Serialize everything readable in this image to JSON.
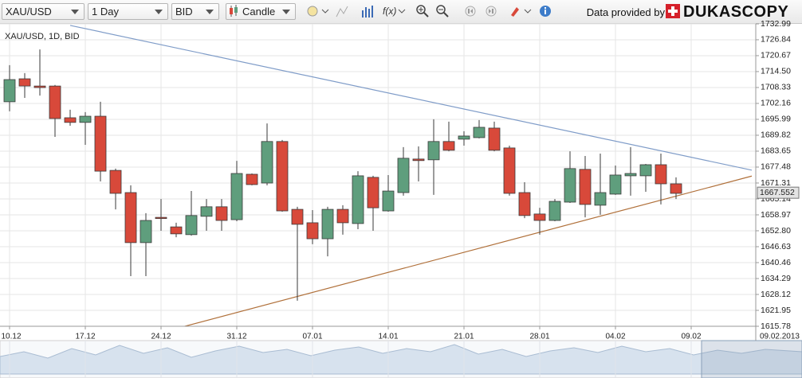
{
  "toolbar": {
    "symbol": "XAU/USD",
    "period": "1 Day",
    "side": "BID",
    "chart_type": "Candle",
    "provider_text": "Data provided by",
    "provider": "DUKASCOPY"
  },
  "chart_data": {
    "type": "candlestick",
    "label": "XAU/USD, 1D, BID",
    "categories": [
      "10.12",
      null,
      null,
      null,
      null,
      "17.12",
      null,
      null,
      null,
      null,
      "24.12",
      null,
      null,
      null,
      null,
      "31.12",
      null,
      null,
      null,
      null,
      "07.01",
      null,
      null,
      null,
      null,
      "14.01",
      null,
      null,
      null,
      null,
      "21.01",
      null,
      null,
      null,
      null,
      "28.01",
      null,
      null,
      null,
      null,
      "04.02",
      null,
      null,
      null,
      null,
      "09.02"
    ],
    "open": [
      1702.8,
      1711.7,
      1708.9,
      1708.9,
      1696.6,
      1694.8,
      1697.2,
      1676.2,
      1667.6,
      1648.2,
      1658.0,
      1654.3,
      1651.3,
      1658.4,
      1662.1,
      1657.1,
      1674.7,
      1671.3,
      1687.4,
      1661.1,
      1655.9,
      1649.7,
      1661.1,
      1655.6,
      1673.5,
      1660.5,
      1667.6,
      1680.6,
      1680.3,
      1687.4,
      1688.3,
      1688.9,
      1692.6,
      1684.9,
      1667.6,
      1659.3,
      1656.8,
      1663.9,
      1676.6,
      1662.7,
      1667.0,
      1674.1,
      1674.1,
      1678.4,
      1671.0,
      null
    ],
    "high": [
      1717.0,
      1713.9,
      1723.1,
      1709.3,
      1699.7,
      1698.8,
      1702.8,
      1676.9,
      1670.4,
      1659.6,
      1665.1,
      1655.9,
      1668.2,
      1665.1,
      1665.1,
      1679.9,
      1675.0,
      1694.4,
      1688.0,
      1662.1,
      1660.8,
      1662.1,
      1662.7,
      1675.9,
      1674.1,
      1674.4,
      1685.2,
      1685.5,
      1696.0,
      1695.1,
      1691.4,
      1695.7,
      1695.1,
      1685.8,
      1671.6,
      1661.7,
      1665.1,
      1683.6,
      1681.8,
      1682.7,
      1678.1,
      1685.2,
      1678.7,
      1682.7,
      1673.5,
      null
    ],
    "low": [
      1699.1,
      1704.3,
      1705.2,
      1689.2,
      1693.5,
      1686.1,
      1671.9,
      1661.1,
      1635.2,
      1635.2,
      1652.8,
      1650.3,
      1650.9,
      1652.8,
      1652.8,
      1656.5,
      1670.4,
      1670.4,
      1660.2,
      1625.7,
      1647.6,
      1642.9,
      1651.3,
      1653.4,
      1652.8,
      1660.2,
      1666.4,
      1671.9,
      1666.7,
      1683.6,
      1685.8,
      1688.6,
      1683.6,
      1666.4,
      1657.7,
      1651.3,
      1656.5,
      1663.6,
      1658.0,
      1659.0,
      1666.7,
      1666.4,
      1667.9,
      1663.0,
      1665.1,
      null
    ],
    "close": [
      1711.4,
      1708.9,
      1708.3,
      1696.3,
      1694.8,
      1697.2,
      1675.9,
      1667.3,
      1648.2,
      1656.8,
      1657.7,
      1651.6,
      1658.7,
      1662.1,
      1656.8,
      1675.0,
      1670.7,
      1687.4,
      1660.5,
      1655.3,
      1649.7,
      1661.1,
      1655.9,
      1674.1,
      1661.7,
      1668.2,
      1680.9,
      1680.0,
      1687.4,
      1684.0,
      1689.5,
      1692.9,
      1684.0,
      1667.3,
      1658.7,
      1656.8,
      1664.2,
      1676.9,
      1663.0,
      1667.6,
      1674.4,
      1675.0,
      1678.4,
      1671.0,
      1667.3,
      null
    ],
    "up_color": "#5f9e7d",
    "down_color": "#d8493a",
    "ylim": [
      1615.78,
      1732.99
    ],
    "yticks": [
      1615.78,
      1621.95,
      1628.12,
      1634.29,
      1640.46,
      1646.63,
      {
        "value": 1652.8,
        "label": "1652.80"
      },
      1658.97,
      1665.14,
      1671.31,
      1677.48,
      1683.65,
      1689.82,
      1695.99,
      1702.16,
      1708.33,
      {
        "value": 1714.5,
        "label": "1714.50"
      },
      1720.67,
      1726.84,
      1732.99
    ],
    "grid": true,
    "last_price": 1667.552,
    "trendlines": [
      {
        "color": "#7f9cc8",
        "points": [
          [
            4,
            1732.4
          ],
          [
            49,
            1676.3
          ]
        ]
      },
      {
        "color": "#b0703a",
        "points": [
          [
            11,
            1614.9
          ],
          [
            49,
            1674.0
          ]
        ]
      }
    ],
    "end_date": "09.02.2013"
  }
}
